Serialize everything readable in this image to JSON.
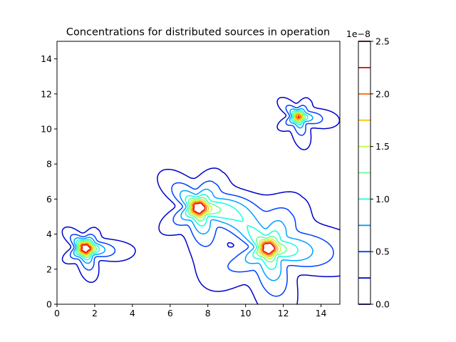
{
  "chart_data": {
    "type": "contour",
    "title": "Concentrations for distributed sources in operation",
    "xlabel": "",
    "ylabel": "",
    "xlim": [
      0,
      15
    ],
    "ylim": [
      0,
      15
    ],
    "xticks": [
      0,
      2,
      4,
      6,
      8,
      10,
      12,
      14
    ],
    "yticks": [
      0,
      2,
      4,
      6,
      8,
      10,
      12,
      14
    ],
    "xtick_labels": [
      "0",
      "2",
      "4",
      "6",
      "8",
      "10",
      "12",
      "14"
    ],
    "ytick_labels": [
      "0",
      "2",
      "4",
      "6",
      "8",
      "10",
      "12",
      "14"
    ],
    "grid": false,
    "colormap": "jet",
    "sources": [
      {
        "x": 1.5,
        "y": 3.2,
        "peak": 2.3e-08
      },
      {
        "x": 7.5,
        "y": 5.5,
        "peak": 2.3e-08
      },
      {
        "x": 11.2,
        "y": 3.2,
        "peak": 2.3e-08
      },
      {
        "x": 12.8,
        "y": 10.7,
        "peak": 1.8e-08
      }
    ],
    "contour_levels": [
      0.25,
      0.5,
      0.75,
      1.0,
      1.25,
      1.5,
      1.75,
      2.0,
      2.25
    ],
    "colorbar": {
      "range": [
        0.0,
        2.5
      ],
      "ticks": [
        0.0,
        0.5,
        1.0,
        1.5,
        2.0,
        2.5
      ],
      "tick_labels": [
        "0.0",
        "0.5",
        "1.0",
        "1.5",
        "2.0",
        "2.5"
      ],
      "offset_label": "1e−8",
      "levels": [
        0.0,
        0.25,
        0.5,
        0.75,
        1.0,
        1.25,
        1.5,
        1.75,
        2.0,
        2.25,
        2.5
      ],
      "level_colors": [
        "#00007f",
        "#0000cc",
        "#0040ff",
        "#00a0ff",
        "#16ffe1",
        "#67ff90",
        "#b8ff3e",
        "#ffc400",
        "#ff6a00",
        "#e80000",
        "#7f0000"
      ]
    }
  }
}
